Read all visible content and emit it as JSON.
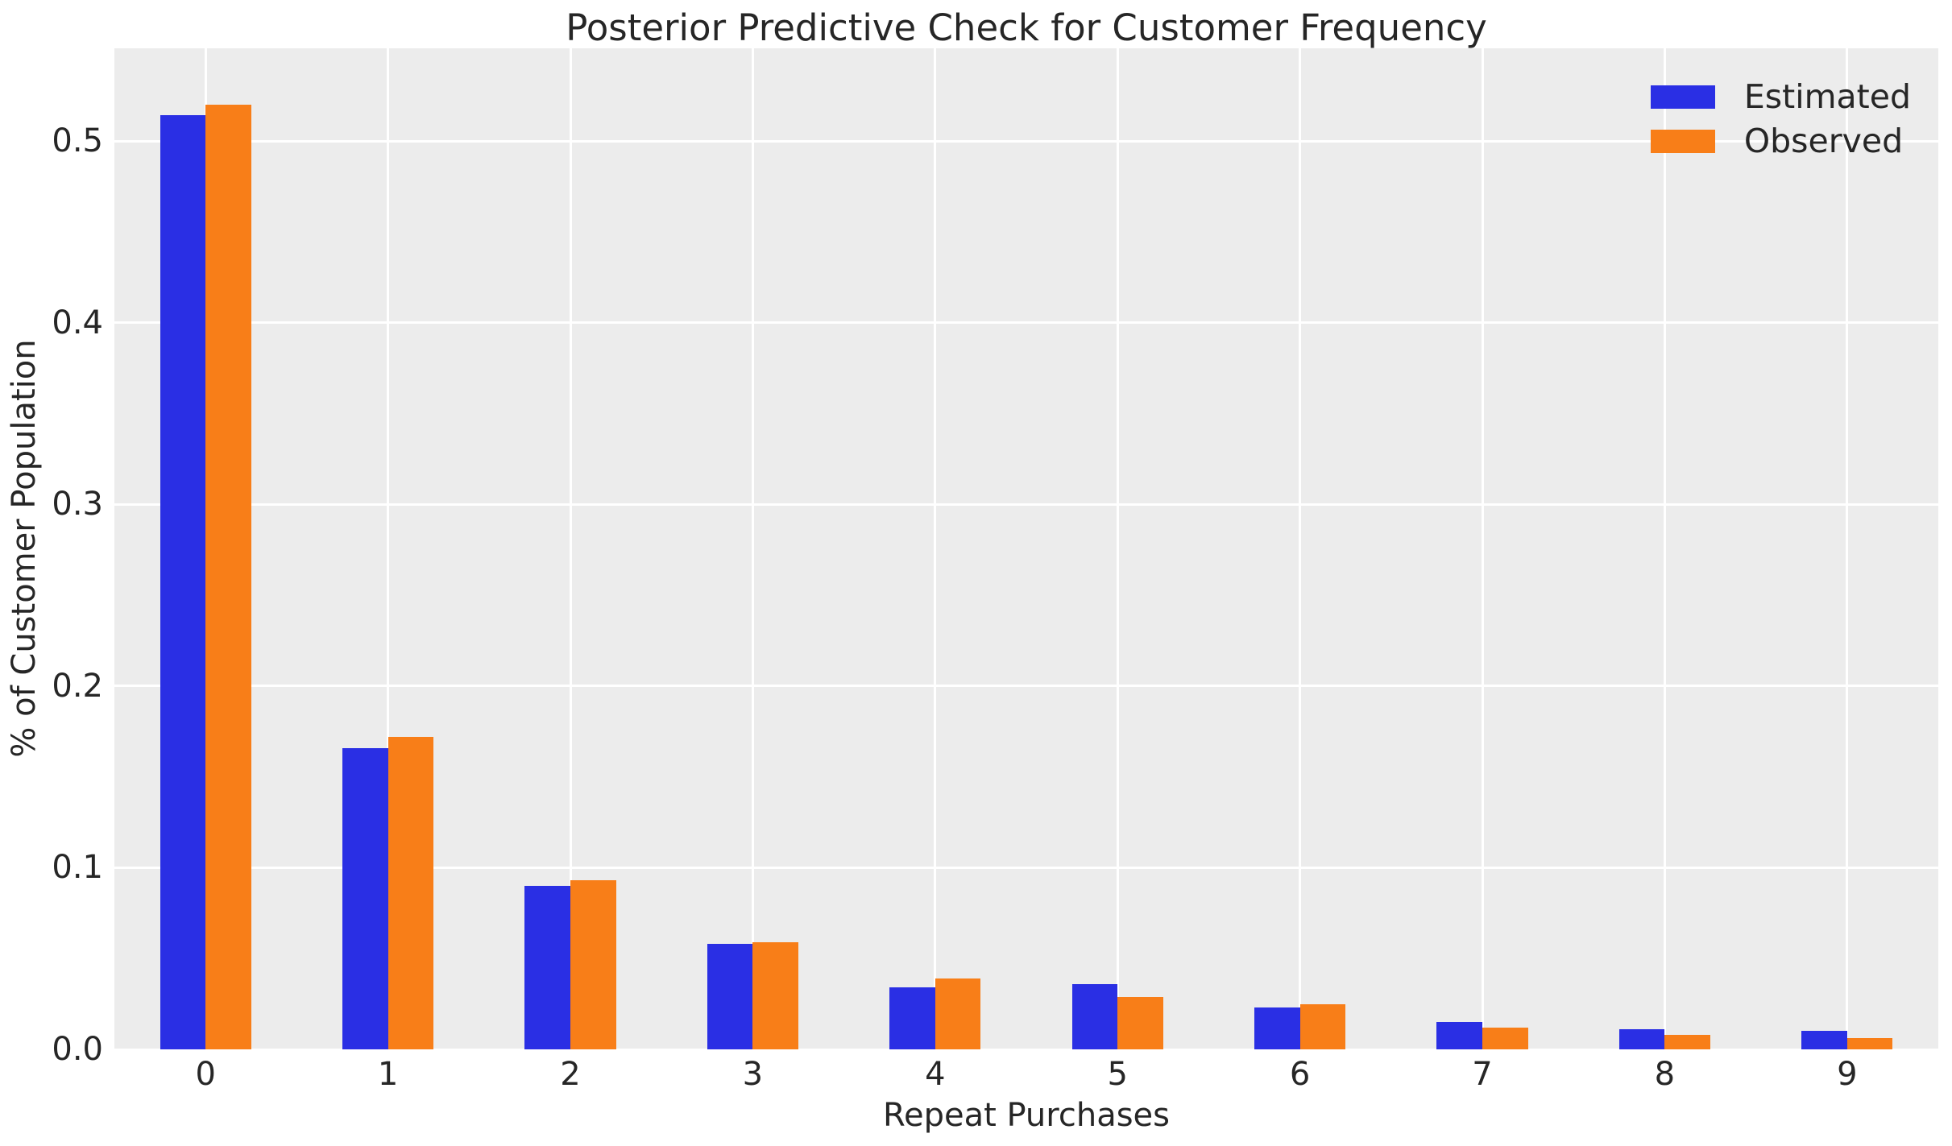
{
  "chart_data": {
    "type": "bar",
    "title": "Posterior Predictive Check for Customer Frequency",
    "xlabel": "Repeat Purchases",
    "ylabel": "% of Customer Population",
    "categories": [
      "0",
      "1",
      "2",
      "3",
      "4",
      "5",
      "6",
      "7",
      "8",
      "9"
    ],
    "series": [
      {
        "name": "Estimated",
        "color": "#2a2fe4",
        "values": [
          0.514,
          0.166,
          0.09,
          0.058,
          0.034,
          0.036,
          0.023,
          0.015,
          0.011,
          0.01
        ]
      },
      {
        "name": "Observed",
        "color": "#f87e18",
        "values": [
          0.52,
          0.172,
          0.093,
          0.059,
          0.039,
          0.029,
          0.025,
          0.012,
          0.008,
          0.006
        ]
      }
    ],
    "ytick_labels": [
      "0.0",
      "0.1",
      "0.2",
      "0.3",
      "0.4",
      "0.5"
    ],
    "ylim": [
      0,
      0.551
    ],
    "grid": true,
    "legend_position": "upper right",
    "plot_background": "#ececec",
    "grid_color": "#ffffff",
    "text_color": "#262626"
  }
}
